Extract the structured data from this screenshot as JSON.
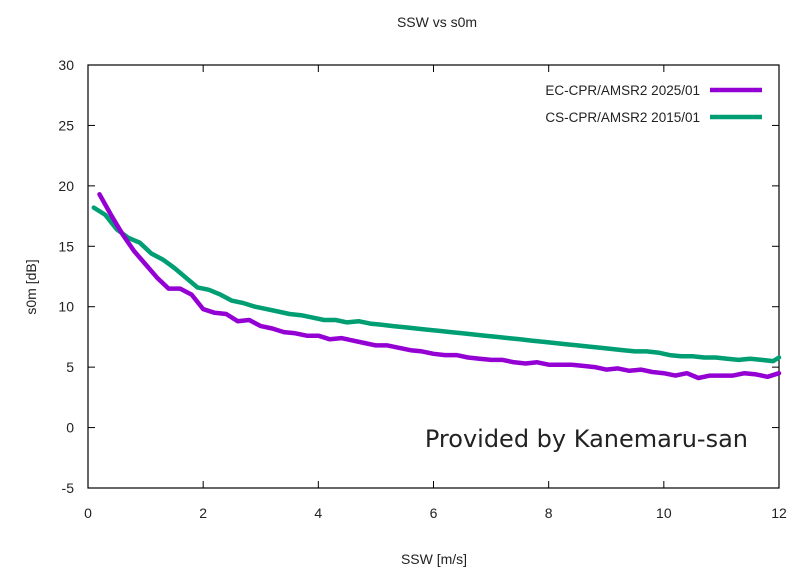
{
  "chart_data": {
    "type": "line",
    "title": "SSW vs s0m",
    "xlabel": "SSW [m/s]",
    "ylabel": "s0m [dB]",
    "xlim": [
      0,
      12
    ],
    "ylim": [
      -5,
      30
    ],
    "x_ticks": [
      0,
      2,
      4,
      6,
      8,
      10,
      12
    ],
    "y_ticks": [
      -5,
      0,
      5,
      10,
      15,
      20,
      25,
      30
    ],
    "x_tick_labels": [
      "0",
      "2",
      "4",
      "6",
      "8",
      "10",
      "12"
    ],
    "y_tick_labels": [
      "-5",
      "0",
      "5",
      "10",
      "15",
      "20",
      "25",
      "30"
    ],
    "grid": false,
    "legend_position": "top-right",
    "annotation": "Provided by Kanemaru-san",
    "series": [
      {
        "name": "EC-CPR/AMSR2 2025/01",
        "color": "#9400d3",
        "x": [
          0.2,
          0.4,
          0.6,
          0.8,
          1.0,
          1.2,
          1.4,
          1.6,
          1.8,
          2.0,
          2.2,
          2.4,
          2.6,
          2.8,
          3.0,
          3.2,
          3.4,
          3.6,
          3.8,
          4.0,
          4.2,
          4.4,
          4.6,
          4.8,
          5.0,
          5.2,
          5.4,
          5.6,
          5.8,
          6.0,
          6.2,
          6.4,
          6.6,
          6.8,
          7.0,
          7.2,
          7.4,
          7.6,
          7.8,
          8.0,
          8.2,
          8.4,
          8.6,
          8.8,
          9.0,
          9.2,
          9.4,
          9.6,
          9.8,
          10.0,
          10.2,
          10.4,
          10.6,
          10.8,
          11.0,
          11.2,
          11.4,
          11.6,
          11.8,
          12.0
        ],
        "y": [
          19.3,
          17.6,
          16.0,
          14.6,
          13.5,
          12.4,
          11.5,
          11.5,
          11.0,
          9.8,
          9.5,
          9.4,
          8.8,
          8.9,
          8.4,
          8.2,
          7.9,
          7.8,
          7.6,
          7.6,
          7.3,
          7.4,
          7.2,
          7.0,
          6.8,
          6.8,
          6.6,
          6.4,
          6.3,
          6.1,
          6.0,
          6.0,
          5.8,
          5.7,
          5.6,
          5.6,
          5.4,
          5.3,
          5.4,
          5.2,
          5.2,
          5.2,
          5.1,
          5.0,
          4.8,
          4.9,
          4.7,
          4.8,
          4.6,
          4.5,
          4.3,
          4.5,
          4.1,
          4.3,
          4.3,
          4.3,
          4.5,
          4.4,
          4.2,
          4.5
        ]
      },
      {
        "name": "CS-CPR/AMSR2 2015/01",
        "color": "#009e73",
        "x": [
          0.1,
          0.3,
          0.5,
          0.7,
          0.9,
          1.1,
          1.3,
          1.5,
          1.7,
          1.9,
          2.1,
          2.3,
          2.5,
          2.7,
          2.9,
          3.1,
          3.3,
          3.5,
          3.7,
          3.9,
          4.1,
          4.3,
          4.5,
          4.7,
          4.9,
          5.1,
          5.3,
          5.5,
          5.7,
          5.9,
          6.1,
          6.3,
          6.5,
          6.7,
          6.9,
          7.1,
          7.3,
          7.5,
          7.7,
          7.9,
          8.1,
          8.3,
          8.5,
          8.7,
          8.9,
          9.1,
          9.3,
          9.5,
          9.7,
          9.9,
          10.1,
          10.3,
          10.5,
          10.7,
          10.9,
          11.1,
          11.3,
          11.5,
          11.7,
          11.9,
          12.0
        ],
        "y": [
          18.2,
          17.6,
          16.4,
          15.7,
          15.3,
          14.4,
          13.9,
          13.2,
          12.4,
          11.6,
          11.4,
          11.0,
          10.5,
          10.3,
          10.0,
          9.8,
          9.6,
          9.4,
          9.3,
          9.1,
          8.9,
          8.9,
          8.7,
          8.8,
          8.6,
          8.5,
          8.4,
          8.3,
          8.2,
          8.1,
          8.0,
          7.9,
          7.8,
          7.7,
          7.6,
          7.5,
          7.4,
          7.3,
          7.2,
          7.1,
          7.0,
          6.9,
          6.8,
          6.7,
          6.6,
          6.5,
          6.4,
          6.3,
          6.3,
          6.2,
          6.0,
          5.9,
          5.9,
          5.8,
          5.8,
          5.7,
          5.6,
          5.7,
          5.6,
          5.5,
          5.8
        ]
      }
    ]
  }
}
